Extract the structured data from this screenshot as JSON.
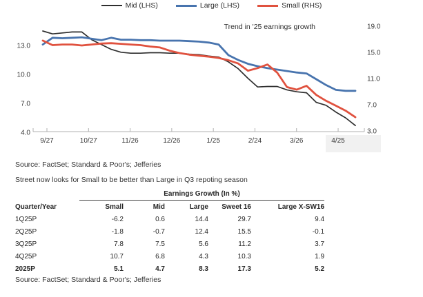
{
  "chart_data": {
    "type": "line",
    "annotation": "Trend in '25 earnings growth",
    "x_tick_labels": [
      "9/27",
      "10/27",
      "11/26",
      "12/26",
      "1/25",
      "2/24",
      "3/26",
      "4/25"
    ],
    "left_axis": {
      "tick_labels": [
        "13.0",
        "10.0",
        "7.0",
        "4.0"
      ],
      "tick_values": [
        13,
        10,
        7,
        4
      ],
      "range": [
        4,
        16
      ]
    },
    "right_axis": {
      "tick_labels": [
        "19.0",
        "15.0",
        "11.0",
        "7.0",
        "3.0"
      ],
      "tick_values": [
        19,
        15,
        11,
        7,
        3
      ],
      "range": [
        3,
        20
      ]
    },
    "legend_position": "top-center",
    "grid": false,
    "series": [
      {
        "name": "Mid",
        "legend_label": "Mid (LHS)",
        "axis": "left",
        "color": "#2e2e2e",
        "values": [
          14.5,
          14.2,
          14.3,
          14.4,
          14.4,
          13.6,
          13.1,
          12.6,
          12.3,
          12.2,
          12.2,
          12.25,
          12.25,
          12.2,
          12.2,
          12.1,
          12.05,
          11.9,
          11.8,
          11.3,
          10.6,
          9.6,
          8.7,
          8.75,
          8.75,
          8.4,
          8.2,
          8.1,
          7.1,
          6.8,
          6.1,
          5.5,
          4.7
        ]
      },
      {
        "name": "Large",
        "legend_label": "Large (LHS)",
        "axis": "left",
        "color": "#4874ae",
        "values": [
          13.1,
          13.8,
          13.75,
          13.8,
          13.85,
          13.7,
          13.55,
          13.8,
          13.6,
          13.6,
          13.55,
          13.55,
          13.5,
          13.5,
          13.5,
          13.45,
          13.4,
          13.3,
          13.1,
          12.0,
          11.5,
          11.1,
          10.85,
          10.65,
          10.5,
          10.35,
          10.2,
          10.1,
          9.5,
          8.9,
          8.4,
          8.3,
          8.3
        ]
      },
      {
        "name": "Small",
        "legend_label": "Small (RHS)",
        "axis": "right",
        "color": "#e0523f",
        "values": [
          16.8,
          16.1,
          16.2,
          16.2,
          16.05,
          16.2,
          16.35,
          16.4,
          16.3,
          16.2,
          16.1,
          15.9,
          15.75,
          15.25,
          14.9,
          14.65,
          14.5,
          14.35,
          14.15,
          13.8,
          13.3,
          12.2,
          12.6,
          13.15,
          11.9,
          9.7,
          9.3,
          9.9,
          8.5,
          7.6,
          6.85,
          6.1,
          5.1
        ]
      }
    ]
  },
  "source_top": "Source: FactSet; Standard & Poor's; Jefferies",
  "comment": "Street now looks for Small to be better than Large in Q3 repoting season",
  "table": {
    "span_header": "Earnings Growth (In %)",
    "columns": [
      "Quarter/Year",
      "Small",
      "Mid",
      "Large",
      "Sweet 16",
      "Large X-SW16"
    ],
    "rows": [
      [
        "1Q25P",
        "-6.2",
        "0.6",
        "14.4",
        "29.7",
        "9.4"
      ],
      [
        "2Q25P",
        "-1.8",
        "-0.7",
        "12.4",
        "15.5",
        "-0.1"
      ],
      [
        "3Q25P",
        "7.8",
        "7.5",
        "5.6",
        "11.2",
        "3.7"
      ],
      [
        "4Q25P",
        "10.7",
        "6.8",
        "4.3",
        "10.3",
        "1.9"
      ],
      [
        "2025P",
        "5.1",
        "4.7",
        "8.3",
        "17.3",
        "5.2"
      ]
    ]
  },
  "source_bottom": "Source: FactSet; Standard & Poor's; Jefferies"
}
